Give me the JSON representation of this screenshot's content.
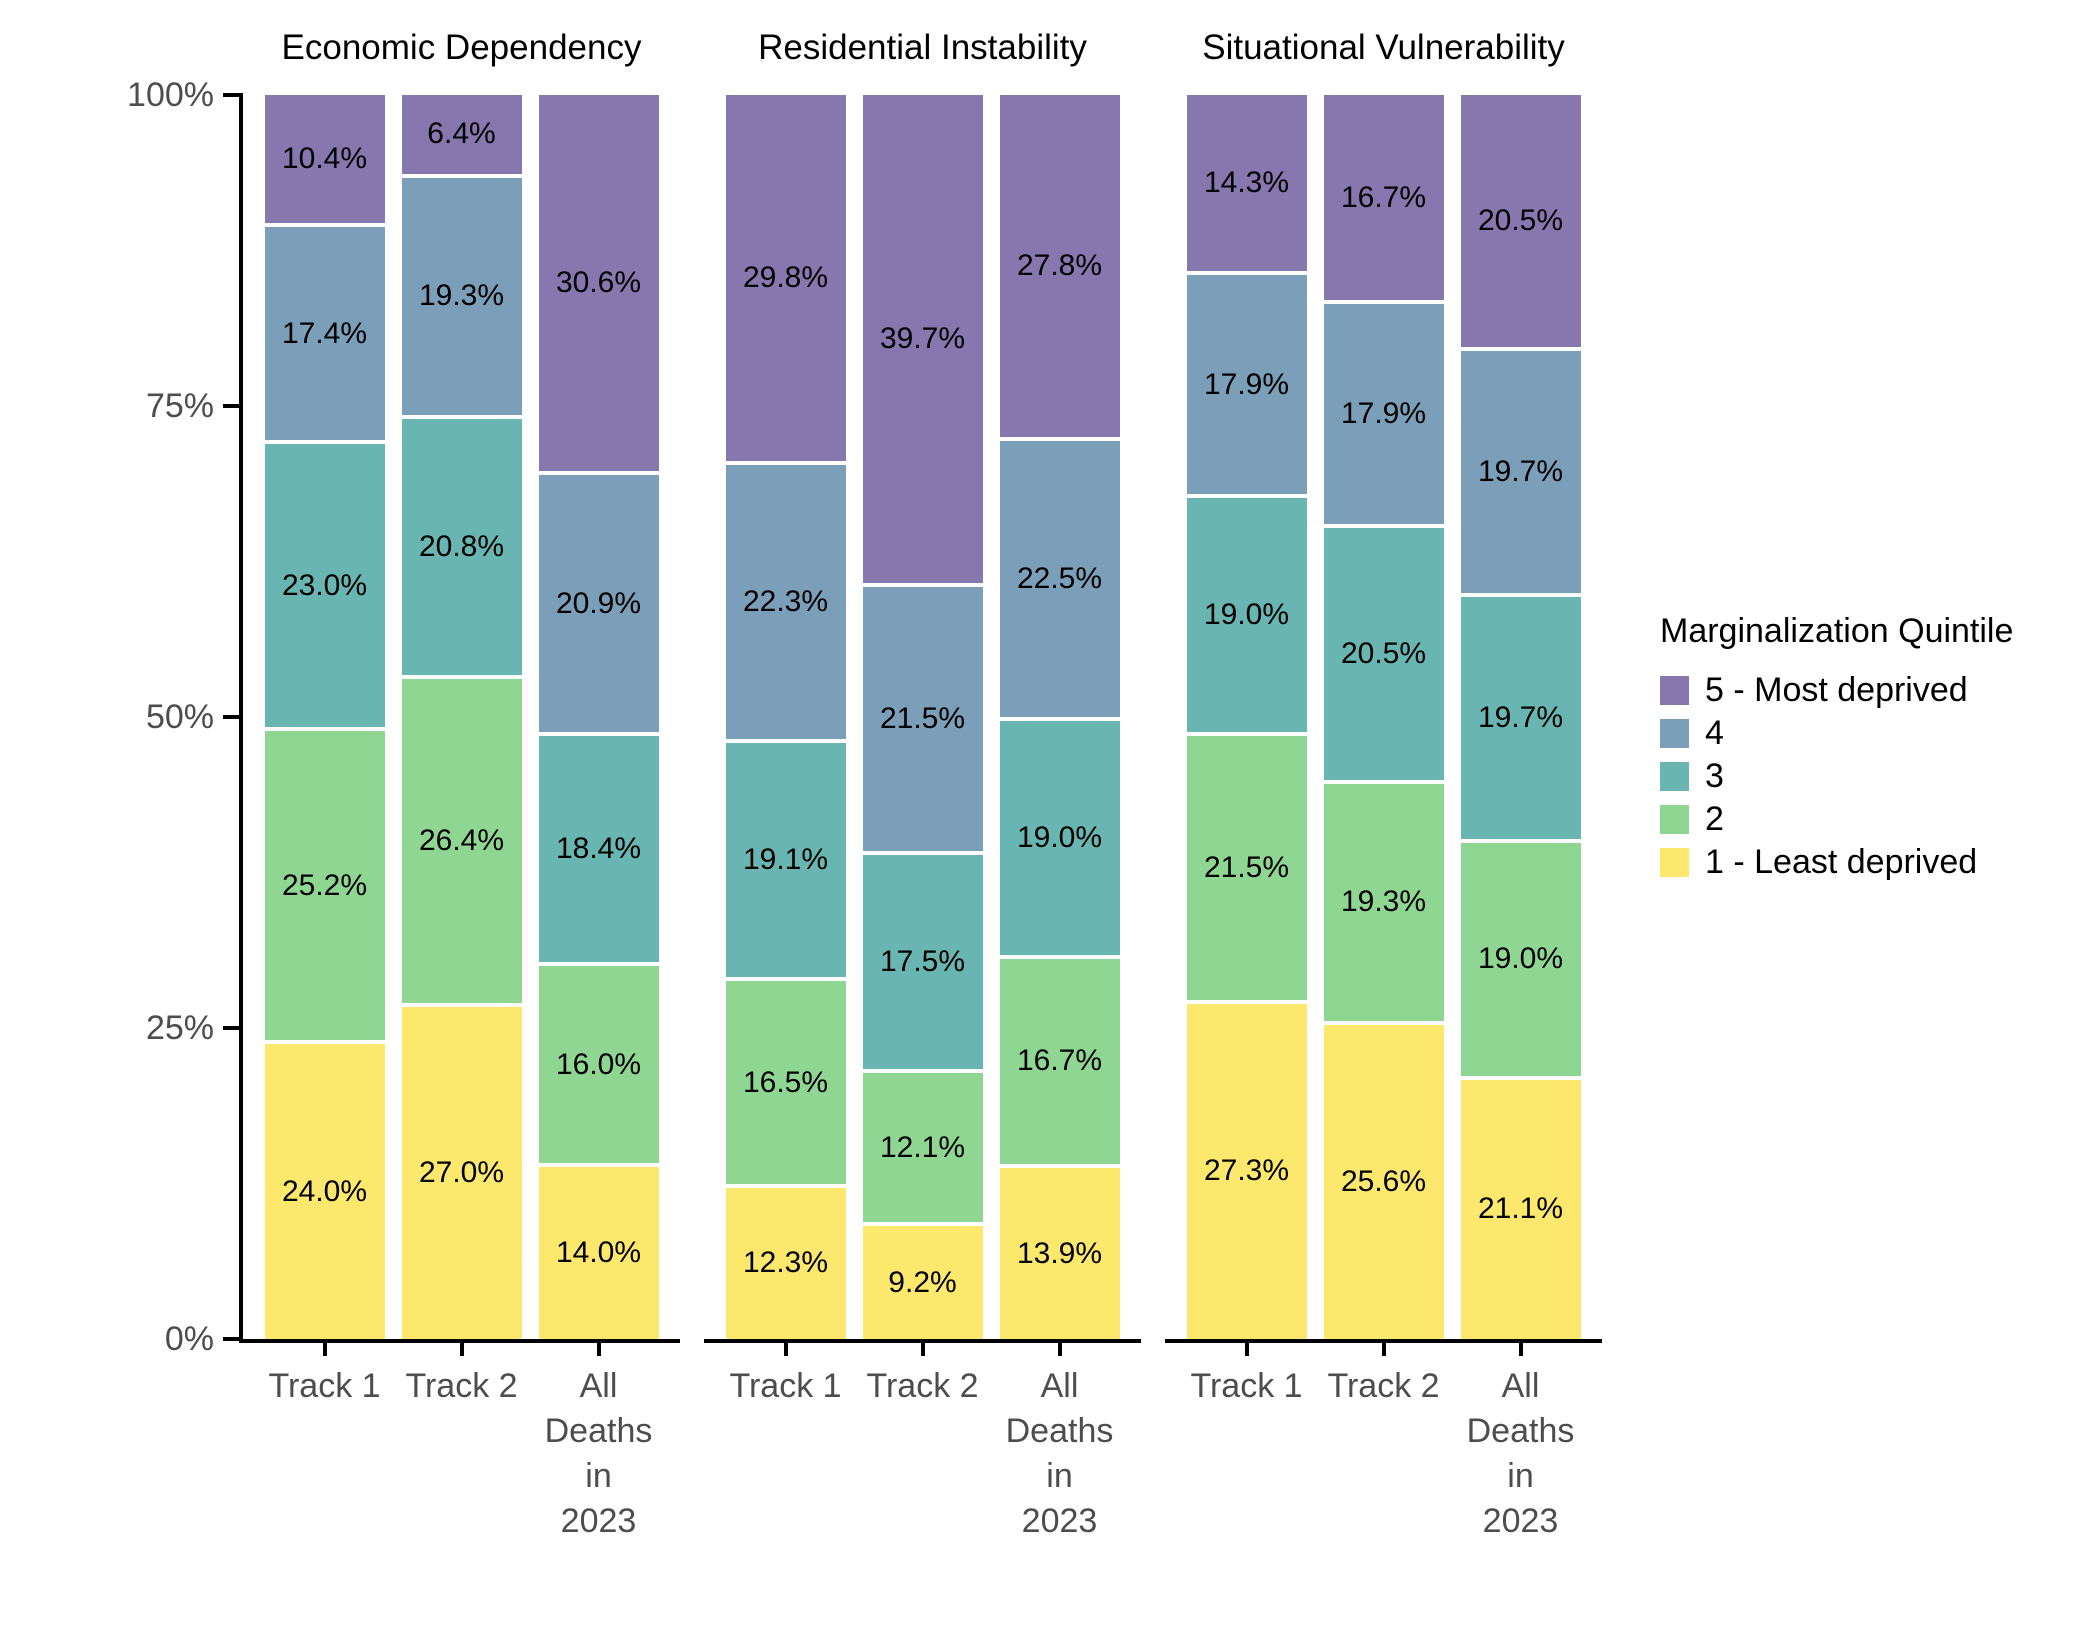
{
  "chart_data": {
    "type": "bar",
    "variant": "stacked-percent-vertical",
    "legend_title": "Marginalization Quintile",
    "legend_position": "right",
    "y_axis": {
      "tick_labels_top_to_bottom": [
        "100%",
        "75%",
        "50%",
        "25%",
        "0%"
      ],
      "range": [
        0,
        100
      ],
      "grid": false
    },
    "value_label_format": "percent_one_decimal",
    "quintiles": [
      {
        "key": "5",
        "label": "5 - Most deprived",
        "color": "#8677AE"
      },
      {
        "key": "4",
        "label": "4",
        "color": "#7B9EB9"
      },
      {
        "key": "3",
        "label": "3",
        "color": "#68B5B1"
      },
      {
        "key": "2",
        "label": "2",
        "color": "#8FD693"
      },
      {
        "key": "1",
        "label": "1 - Least deprived",
        "color": "#FBE86C"
      }
    ],
    "panels": [
      {
        "title": "Economic Dependency",
        "bars": [
          {
            "label": "Track 1",
            "values": [
              10.4,
              17.4,
              23.0,
              25.2,
              24.0
            ]
          },
          {
            "label": "Track 2",
            "values": [
              6.4,
              19.3,
              20.8,
              26.4,
              27.0
            ]
          },
          {
            "label": "All\nDeaths in\n2023",
            "values": [
              30.6,
              20.9,
              18.4,
              16.0,
              14.0
            ]
          }
        ]
      },
      {
        "title": "Residential Instability",
        "bars": [
          {
            "label": "Track 1",
            "values": [
              29.8,
              22.3,
              19.1,
              16.5,
              12.3
            ]
          },
          {
            "label": "Track 2",
            "values": [
              39.7,
              21.5,
              17.5,
              12.1,
              9.2
            ]
          },
          {
            "label": "All\nDeaths in\n2023",
            "values": [
              27.8,
              22.5,
              19.0,
              16.7,
              13.9
            ]
          }
        ]
      },
      {
        "title": "Situational Vulnerability",
        "bars": [
          {
            "label": "Track 1",
            "values": [
              14.3,
              17.9,
              19.0,
              21.5,
              27.3
            ]
          },
          {
            "label": "Track 2",
            "values": [
              16.7,
              17.9,
              20.5,
              19.3,
              25.6
            ]
          },
          {
            "label": "All\nDeaths in\n2023",
            "values": [
              20.5,
              19.7,
              19.7,
              19.0,
              21.1
            ]
          }
        ]
      }
    ],
    "colors": {
      "axis_text": "#4D4D4D",
      "axis_line": "#000000",
      "value_label": "#000000",
      "background": "#FFFFFF"
    }
  }
}
